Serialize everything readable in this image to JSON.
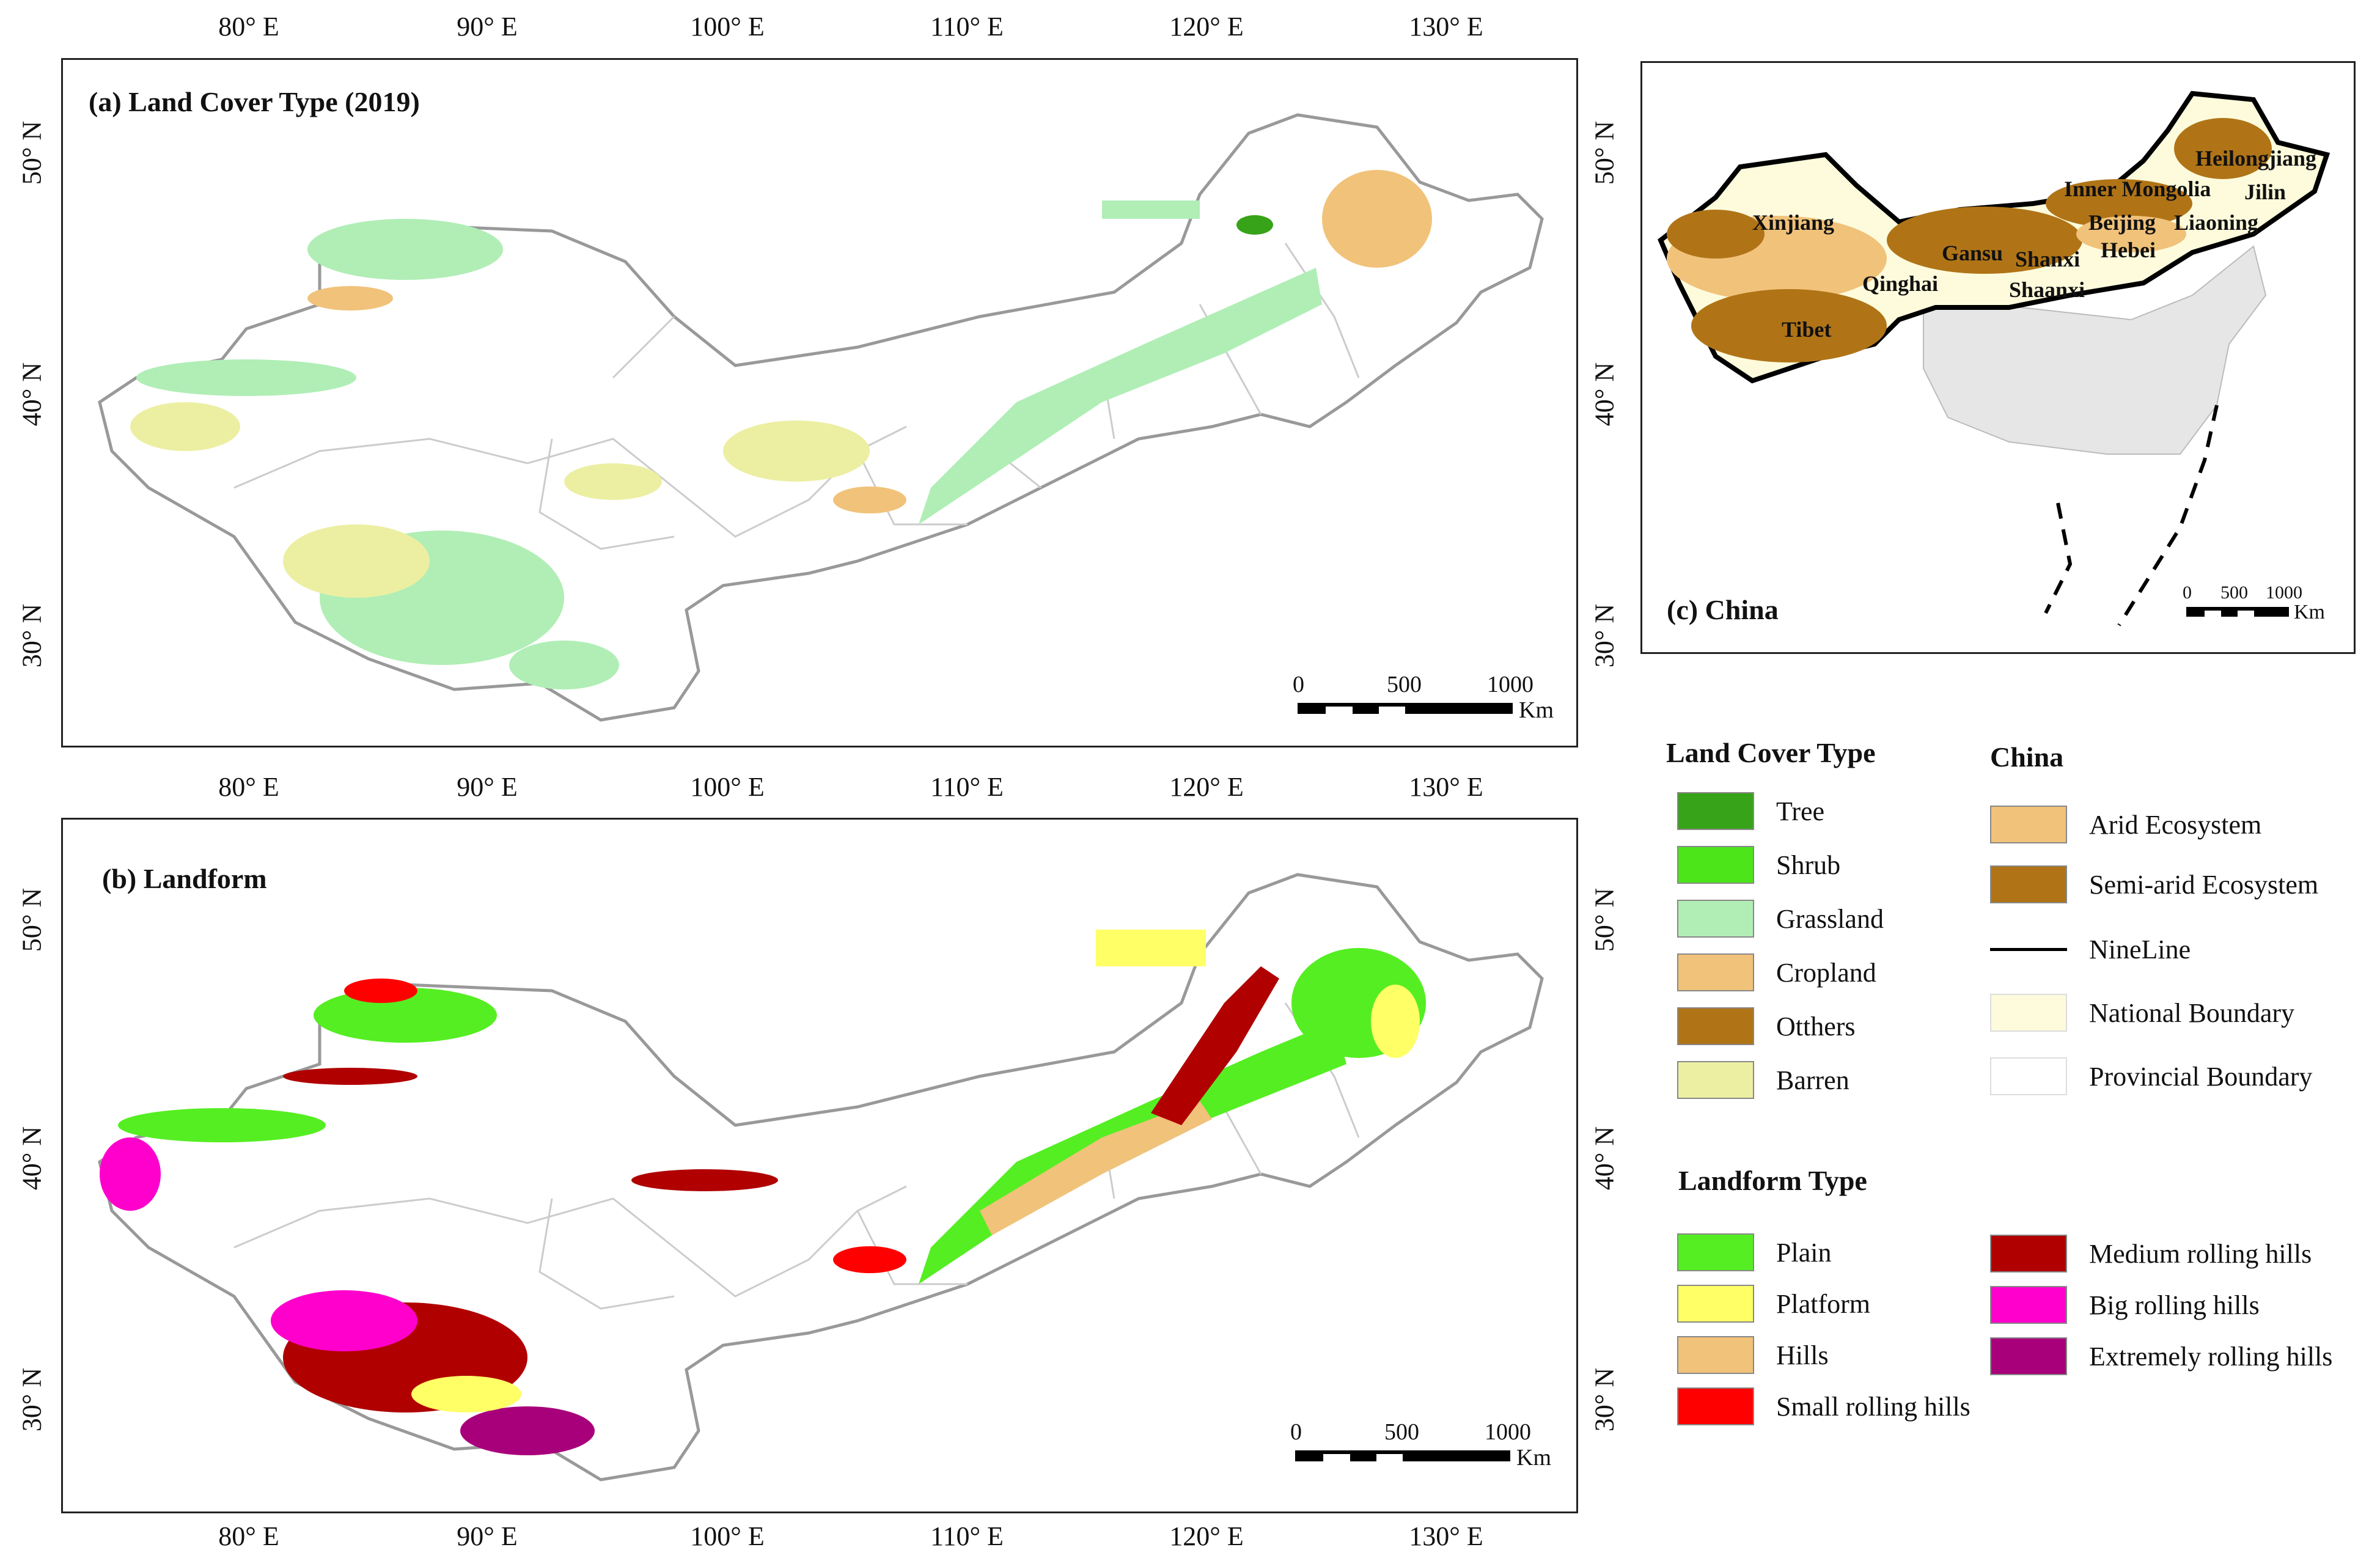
{
  "panel_a": {
    "title": "(a) Land Cover Type (2019)",
    "top_ticks": [
      "80° E",
      "90° E",
      "100° E",
      "110° E",
      "120° E",
      "130° E"
    ],
    "bottom_ticks": [
      "80° E",
      "90° E",
      "100° E",
      "110° E",
      "120° E",
      "130° E"
    ],
    "left_ticks": [
      "50° N",
      "40° N",
      "30° N"
    ],
    "right_ticks": [
      "50° N",
      "40° N",
      "30° N"
    ],
    "scale": {
      "labels": [
        "0",
        "500",
        "1000"
      ],
      "unit": "Km"
    }
  },
  "panel_b": {
    "title": "(b) Landform",
    "bottom_ticks": [
      "80° E",
      "90° E",
      "100° E",
      "110° E",
      "120° E",
      "130° E"
    ],
    "left_ticks": [
      "50° N",
      "40° N",
      "30° N"
    ],
    "right_ticks": [
      "50° N",
      "40° N",
      "30° N"
    ],
    "scale": {
      "labels": [
        "0",
        "500",
        "1000"
      ],
      "unit": "Km"
    }
  },
  "panel_c": {
    "title": "(c) China",
    "province_labels": [
      "Heilongjiang",
      "Inner Mongolia",
      "Jilin",
      "Xinjiang",
      "Beijing",
      "Liaoning",
      "Gansu",
      "Shanxi",
      "Hebei",
      "Qinghai",
      "Shaanxi",
      "Tibet"
    ],
    "scale": {
      "labels": [
        "0",
        "500",
        "1000"
      ],
      "unit": "Km"
    }
  },
  "legend_land_cover": {
    "title": "Land Cover Type",
    "items": [
      {
        "label": "Tree",
        "color": "#37a318"
      },
      {
        "label": "Shrub",
        "color": "#4ce51a"
      },
      {
        "label": "Grassland",
        "color": "#b0eeb6"
      },
      {
        "label": "Cropland",
        "color": "#f1c27a"
      },
      {
        "label": "Otthers",
        "color": "#b07417"
      },
      {
        "label": "Barren",
        "color": "#ecefa2"
      }
    ]
  },
  "legend_china": {
    "title": "China",
    "items": [
      {
        "label": "Arid Ecosystem",
        "color": "#f1c27a",
        "kind": "fill"
      },
      {
        "label": "Semi-arid Ecosystem",
        "color": "#b07417",
        "kind": "fill"
      },
      {
        "label": "NineLine",
        "color": "#000000",
        "kind": "line"
      },
      {
        "label": "National Boundary",
        "color": "#fdfbdc",
        "kind": "fill"
      },
      {
        "label": "Provincial Boundary",
        "color": "#ffffff",
        "kind": "fill"
      }
    ]
  },
  "legend_landform": {
    "title": "Landform Type",
    "items": [
      {
        "label": "Plain",
        "color": "#55ee22"
      },
      {
        "label": "Platform",
        "color": "#ffff66"
      },
      {
        "label": "Hills",
        "color": "#f1c27a"
      },
      {
        "label": "Small rolling hills",
        "color": "#ff0000"
      },
      {
        "label": "Medium rolling hills",
        "color": "#b00000"
      },
      {
        "label": "Big rolling hills",
        "color": "#ff00cc"
      },
      {
        "label": "Extremely rolling hills",
        "color": "#a8007a"
      }
    ]
  }
}
